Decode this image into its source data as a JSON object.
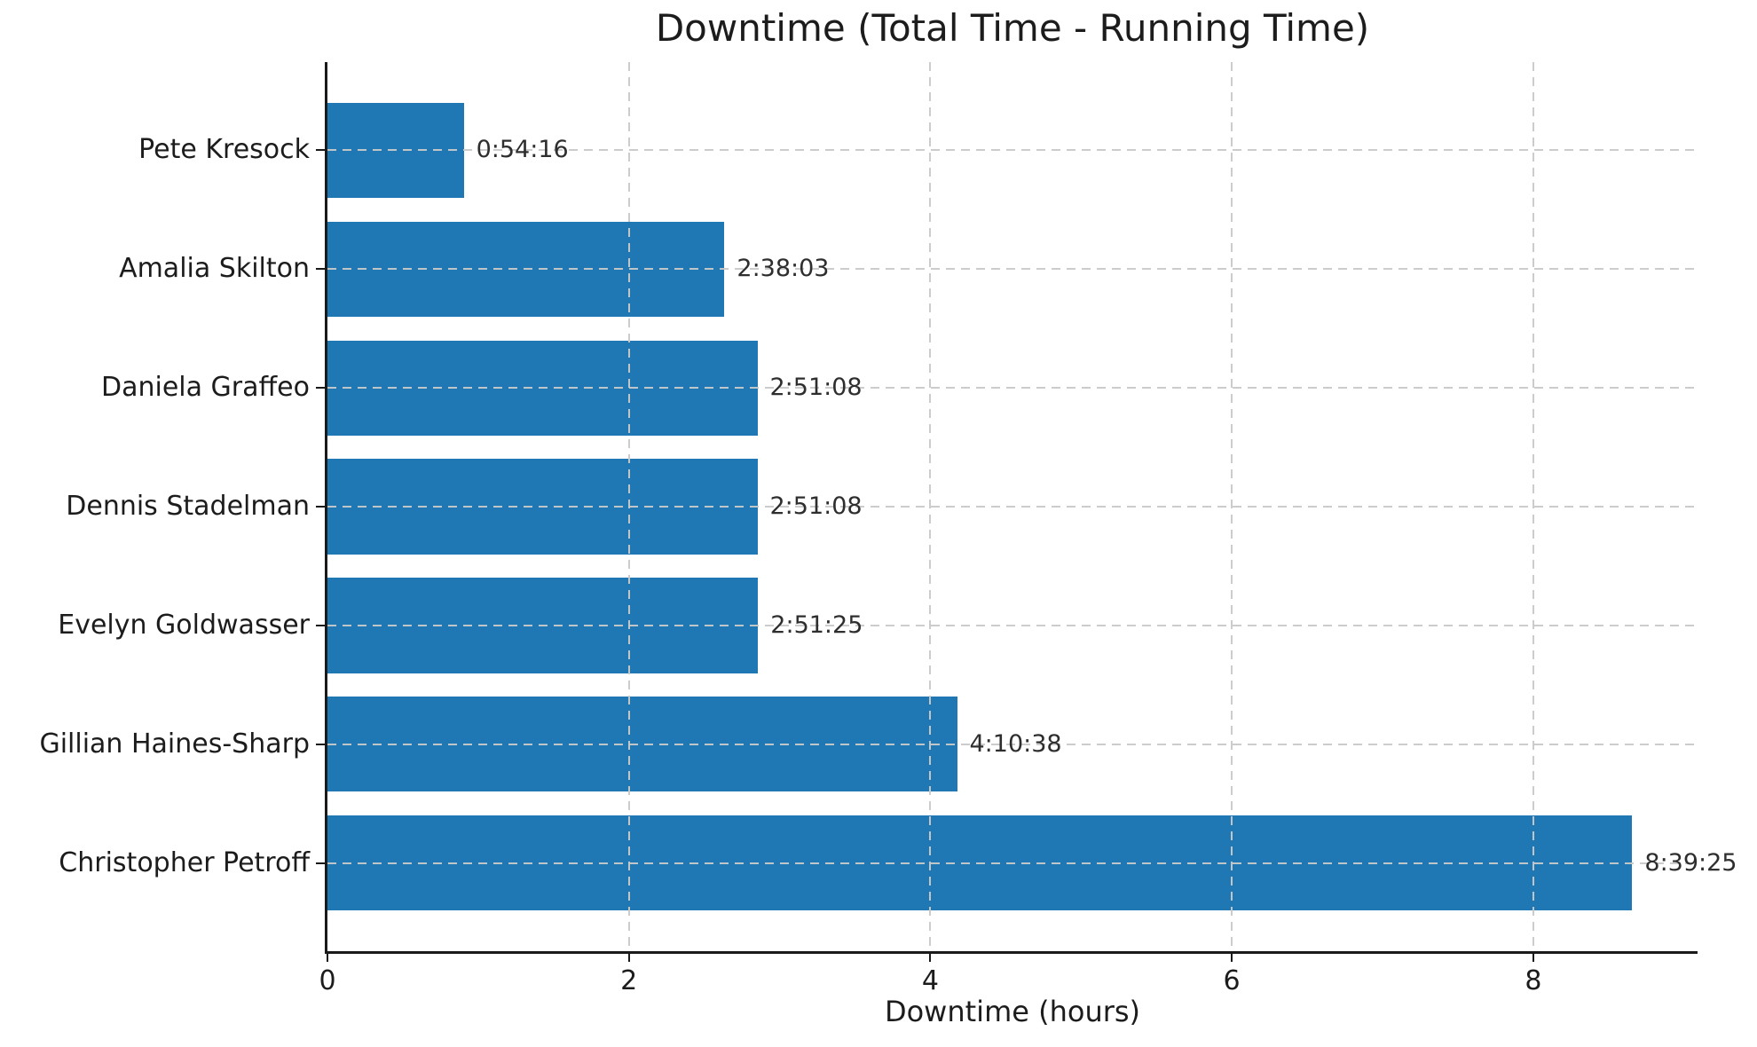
{
  "chart_data": {
    "type": "bar",
    "orientation": "horizontal",
    "title": "Downtime (Total Time - Running Time)",
    "xlabel": "Downtime (hours)",
    "ylabel": "",
    "categories": [
      "Pete Kresock",
      "Amalia Skilton",
      "Daniela Graffeo",
      "Dennis Stadelman",
      "Evelyn Goldwasser",
      "Gillian Haines-Sharp",
      "Christopher Petroff"
    ],
    "value_labels": [
      "0:54:16",
      "2:38:03",
      "2:51:08",
      "2:51:08",
      "2:51:25",
      "4:10:38",
      "8:39:25"
    ],
    "values_hours": [
      0.9044,
      2.6342,
      2.8522,
      2.8522,
      2.8569,
      4.1772,
      8.6569
    ],
    "xticks": [
      "0",
      "2",
      "4",
      "6",
      "8"
    ],
    "xtick_values": [
      0,
      2,
      4,
      6,
      8
    ],
    "xlim": [
      0,
      9.09
    ],
    "bar_fraction": 0.8,
    "grid": "dashed gridlines on both axes, drawn above bars",
    "legend_position": "none",
    "colors": {
      "bar": "#1f77b4",
      "grid": "#c9c9c9",
      "text": "#1c1c1c",
      "spine": "#1a1a1a",
      "background": "#ffffff"
    }
  }
}
